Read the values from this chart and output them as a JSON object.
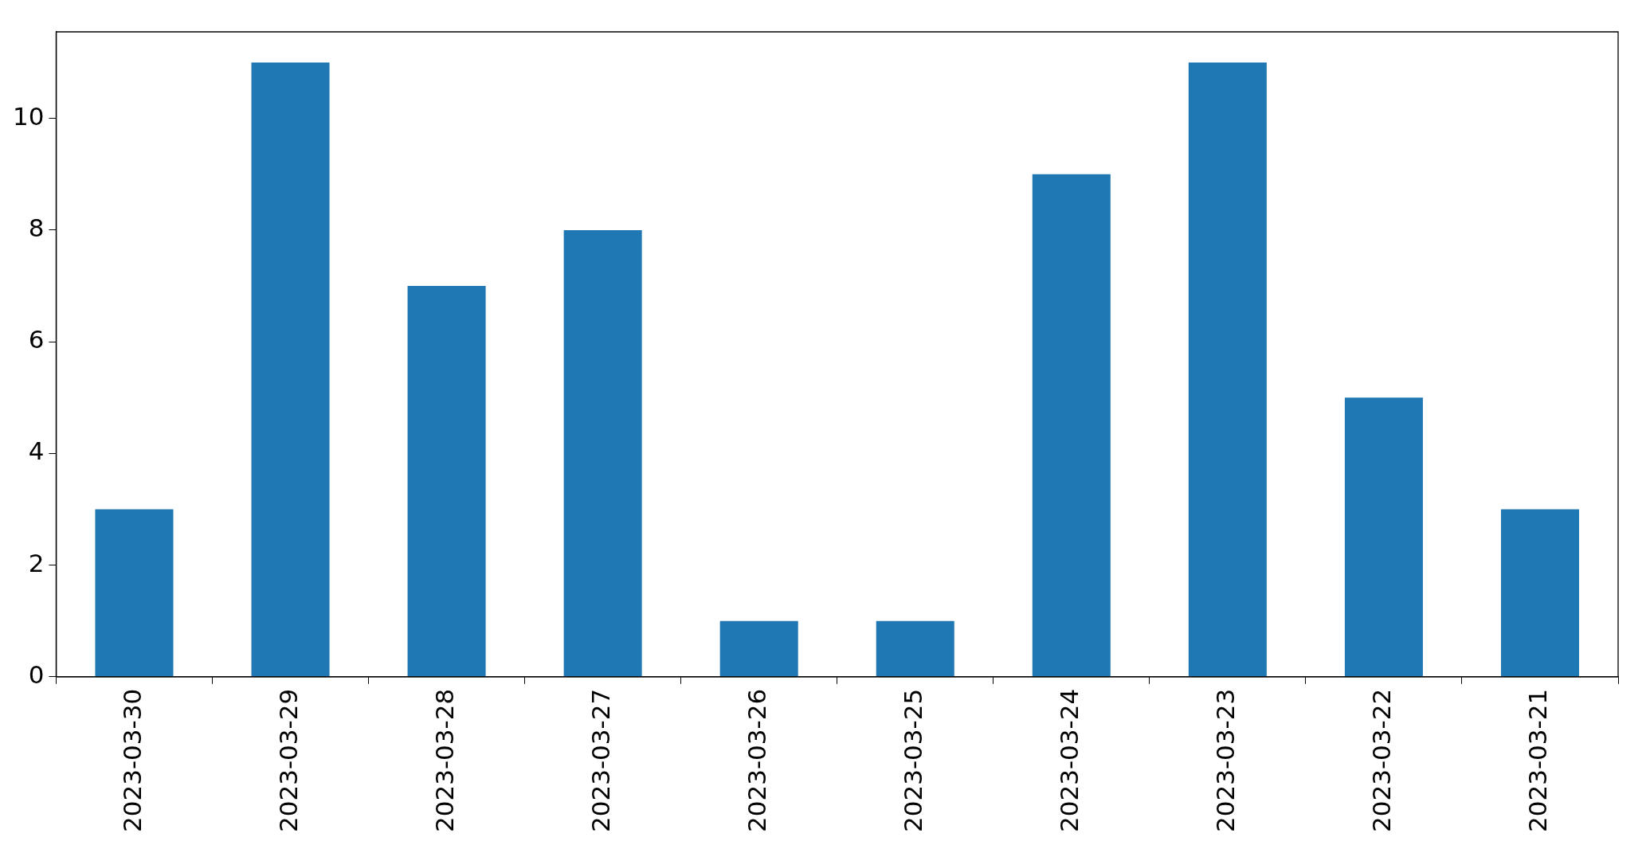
{
  "chart_data": {
    "type": "bar",
    "categories": [
      "2023-03-30",
      "2023-03-29",
      "2023-03-28",
      "2023-03-27",
      "2023-03-26",
      "2023-03-25",
      "2023-03-24",
      "2023-03-23",
      "2023-03-22",
      "2023-03-21"
    ],
    "values": [
      3,
      11,
      7,
      8,
      1,
      1,
      9,
      11,
      5,
      3
    ],
    "color": "#1f77b4",
    "ylim": [
      0,
      11.55
    ],
    "yticks": [
      0,
      2,
      4,
      6,
      8,
      10
    ],
    "grid": false,
    "legend": false
  }
}
